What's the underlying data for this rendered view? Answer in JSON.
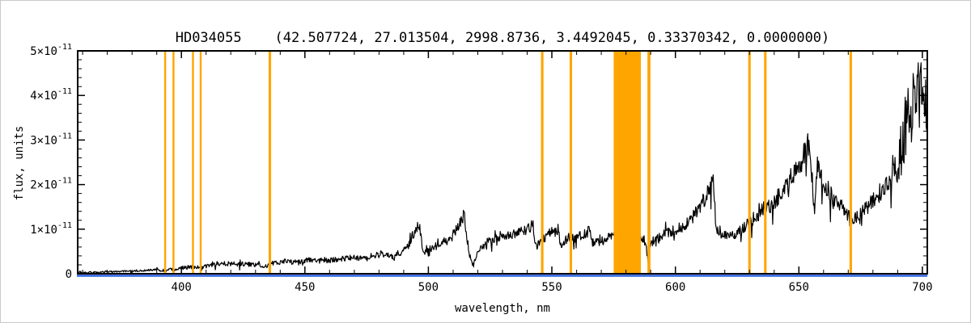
{
  "title": "HD034055    (42.507724, 27.013504, 2998.8736, 3.4492045, 0.33370342, 0.0000000)",
  "axes": {
    "xlabel": "wavelength, nm",
    "ylabel": "flux, units",
    "xrange": [
      358,
      702
    ],
    "yrange_units_1e-11": [
      0,
      5
    ],
    "xticks": [
      "400",
      "450",
      "500",
      "550",
      "600",
      "650",
      "700"
    ],
    "yticks": [
      {
        "mant": "0",
        "exp": ""
      },
      {
        "mant": "1×10",
        "exp": "-11"
      },
      {
        "mant": "2×10",
        "exp": "-11"
      },
      {
        "mant": "3×10",
        "exp": "-11"
      },
      {
        "mant": "4×10",
        "exp": "-11"
      },
      {
        "mant": "5×10",
        "exp": "-11"
      }
    ]
  },
  "colors": {
    "spectrum": "#000000",
    "markers": "#ffa500",
    "baseline": "#2b64e0",
    "frame": "#000000",
    "background": "#ffffff"
  },
  "chart_data": {
    "type": "line",
    "title": "HD034055    (42.507724, 27.013504, 2998.8736, 3.4492045, 0.33370342, 0.0000000)",
    "xlabel": "wavelength, nm",
    "ylabel": "flux, units",
    "xlim": [
      358,
      702
    ],
    "ylim": [
      0,
      5e-11
    ],
    "grid": false,
    "legend": "none",
    "y_scale_factor": 1e-11,
    "series": [
      {
        "name": "stellar spectrum",
        "color": "#000000",
        "style": "noisy line",
        "noise_base": 0.03,
        "noise_frac": 0.1,
        "points": [
          [
            358,
            0.02
          ],
          [
            362,
            0.03
          ],
          [
            366,
            0.03
          ],
          [
            370,
            0.04
          ],
          [
            374,
            0.05
          ],
          [
            378,
            0.06
          ],
          [
            382,
            0.06
          ],
          [
            386,
            0.08
          ],
          [
            390,
            0.09
          ],
          [
            393,
            0.07
          ],
          [
            395,
            0.1
          ],
          [
            397,
            0.08
          ],
          [
            399,
            0.12
          ],
          [
            402,
            0.14
          ],
          [
            405,
            0.16
          ],
          [
            408,
            0.14
          ],
          [
            411,
            0.18
          ],
          [
            414,
            0.21
          ],
          [
            417,
            0.23
          ],
          [
            420,
            0.23
          ],
          [
            423,
            0.21
          ],
          [
            426,
            0.22
          ],
          [
            429,
            0.2
          ],
          [
            432,
            0.19
          ],
          [
            434,
            0.17
          ],
          [
            436,
            0.22
          ],
          [
            439,
            0.26
          ],
          [
            442,
            0.28
          ],
          [
            445,
            0.26
          ],
          [
            448,
            0.27
          ],
          [
            451,
            0.3
          ],
          [
            454,
            0.31
          ],
          [
            457,
            0.32
          ],
          [
            460,
            0.3
          ],
          [
            463,
            0.32
          ],
          [
            466,
            0.35
          ],
          [
            469,
            0.37
          ],
          [
            472,
            0.36
          ],
          [
            475,
            0.38
          ],
          [
            478,
            0.42
          ],
          [
            481,
            0.45
          ],
          [
            484,
            0.42
          ],
          [
            486,
            0.38
          ],
          [
            488,
            0.48
          ],
          [
            490,
            0.55
          ],
          [
            492,
            0.65
          ],
          [
            494,
            0.9
          ],
          [
            495.5,
            1.08
          ],
          [
            496.5,
            1.12
          ],
          [
            497.5,
            0.55
          ],
          [
            499,
            0.5
          ],
          [
            501,
            0.58
          ],
          [
            503,
            0.62
          ],
          [
            505,
            0.66
          ],
          [
            507,
            0.7
          ],
          [
            509,
            0.8
          ],
          [
            511,
            0.95
          ],
          [
            513,
            1.18
          ],
          [
            514.5,
            1.3
          ],
          [
            515.5,
            0.85
          ],
          [
            516.5,
            0.45
          ],
          [
            518,
            0.18
          ],
          [
            519.5,
            0.4
          ],
          [
            521,
            0.58
          ],
          [
            523,
            0.68
          ],
          [
            525,
            0.75
          ],
          [
            527,
            0.8
          ],
          [
            529,
            0.84
          ],
          [
            531,
            0.8
          ],
          [
            533,
            0.85
          ],
          [
            535,
            0.9
          ],
          [
            537,
            0.94
          ],
          [
            539,
            0.98
          ],
          [
            541,
            1.04
          ],
          [
            542.5,
            1.08
          ],
          [
            543.5,
            0.6
          ],
          [
            545,
            0.7
          ],
          [
            547,
            0.82
          ],
          [
            549,
            0.9
          ],
          [
            551,
            0.96
          ],
          [
            552.5,
            1.0
          ],
          [
            553.5,
            0.62
          ],
          [
            555,
            0.72
          ],
          [
            557,
            0.82
          ],
          [
            559,
            0.78
          ],
          [
            561,
            0.84
          ],
          [
            563,
            0.9
          ],
          [
            565,
            0.95
          ],
          [
            566.5,
            0.7
          ],
          [
            568,
            0.74
          ],
          [
            570,
            0.72
          ],
          [
            572,
            0.77
          ],
          [
            574,
            0.83
          ],
          [
            576,
            0.87
          ],
          [
            578,
            0.85
          ],
          [
            580,
            0.84
          ],
          [
            582,
            0.83
          ],
          [
            584,
            0.8
          ],
          [
            586,
            0.78
          ],
          [
            588,
            0.74
          ],
          [
            589,
            0.18
          ],
          [
            590,
            0.7
          ],
          [
            592,
            0.77
          ],
          [
            594,
            0.84
          ],
          [
            596,
            0.9
          ],
          [
            598,
            0.95
          ],
          [
            600,
            1.0
          ],
          [
            602,
            1.04
          ],
          [
            604,
            1.1
          ],
          [
            606,
            1.2
          ],
          [
            608,
            1.34
          ],
          [
            610,
            1.5
          ],
          [
            612,
            1.7
          ],
          [
            614,
            1.92
          ],
          [
            615.3,
            2.02
          ],
          [
            616.3,
            1.12
          ],
          [
            617.5,
            0.92
          ],
          [
            619,
            0.85
          ],
          [
            621,
            0.82
          ],
          [
            623,
            0.86
          ],
          [
            625,
            0.92
          ],
          [
            627,
            1.0
          ],
          [
            629,
            1.1
          ],
          [
            631,
            1.2
          ],
          [
            633,
            1.32
          ],
          [
            635,
            1.42
          ],
          [
            637,
            1.48
          ],
          [
            639,
            1.58
          ],
          [
            641,
            1.68
          ],
          [
            643,
            1.8
          ],
          [
            645,
            1.95
          ],
          [
            647,
            2.15
          ],
          [
            649,
            2.35
          ],
          [
            651,
            2.55
          ],
          [
            652.5,
            2.75
          ],
          [
            653.5,
            2.92
          ],
          [
            654.5,
            2.55
          ],
          [
            655.5,
            2.1
          ],
          [
            656.3,
            1.25
          ],
          [
            657,
            2.3
          ],
          [
            658,
            2.42
          ],
          [
            659,
            2.25
          ],
          [
            660,
            2.05
          ],
          [
            662,
            1.85
          ],
          [
            664,
            1.68
          ],
          [
            666,
            1.56
          ],
          [
            668,
            1.45
          ],
          [
            670,
            1.32
          ],
          [
            671,
            1.12
          ],
          [
            672,
            1.2
          ],
          [
            674,
            1.32
          ],
          [
            676,
            1.42
          ],
          [
            678,
            1.52
          ],
          [
            680,
            1.62
          ],
          [
            682,
            1.76
          ],
          [
            684,
            1.92
          ],
          [
            686,
            2.06
          ],
          [
            688,
            2.25
          ],
          [
            690,
            2.55
          ],
          [
            692,
            2.95
          ],
          [
            694,
            3.35
          ],
          [
            695,
            3.62
          ],
          [
            696,
            3.92
          ],
          [
            697,
            4.25
          ],
          [
            698,
            4.45
          ],
          [
            699,
            3.85
          ],
          [
            700,
            4.15
          ],
          [
            701,
            3.7
          ],
          [
            702,
            4.05
          ]
        ]
      },
      {
        "name": "zero baseline",
        "color": "#2b64e0",
        "style": "flat line at zero",
        "flux": 0
      }
    ],
    "marker_lines": {
      "description": "vertical orange wavelength markers",
      "color": "#ffa500",
      "lines": [
        {
          "nm": 393.4,
          "width_nm": 0.8
        },
        {
          "nm": 396.8,
          "width_nm": 0.8
        },
        {
          "nm": 404.7,
          "width_nm": 0.8
        },
        {
          "nm": 407.8,
          "width_nm": 0.8
        },
        {
          "nm": 435.8,
          "width_nm": 1.0
        },
        {
          "nm": 546.1,
          "width_nm": 1.0
        },
        {
          "nm": 557.7,
          "width_nm": 1.0
        },
        {
          "nm": 589.3,
          "width_nm": 1.2
        },
        {
          "nm": 630.0,
          "width_nm": 1.0
        },
        {
          "nm": 636.4,
          "width_nm": 1.0
        },
        {
          "nm": 671.0,
          "width_nm": 1.0
        }
      ],
      "band_nm": [
        575.0,
        586.0
      ]
    }
  }
}
